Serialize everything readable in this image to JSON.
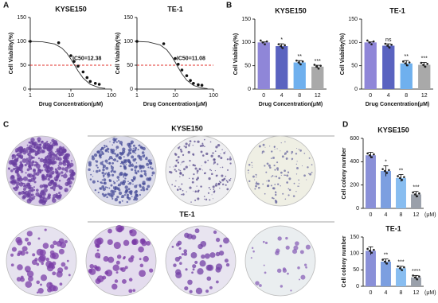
{
  "panels": [
    "A",
    "B",
    "C",
    "D"
  ],
  "plates": {
    "titles": [
      "KYSE150",
      "TE-1"
    ]
  },
  "chart_data": [
    {
      "type": "scatter",
      "title": "KYSE150",
      "xlabel": "Drug Concentration(μM)",
      "ylabel": "Cell Viability(%)",
      "x": [
        1,
        5,
        10,
        12,
        15,
        20,
        25,
        30,
        40,
        50
      ],
      "values": [
        100,
        97,
        70,
        58,
        48,
        36,
        24,
        16,
        12,
        10
      ],
      "fit_x": [
        1,
        2,
        4,
        6,
        8,
        10,
        12,
        15,
        20,
        30,
        50,
        70
      ],
      "fit_values": [
        99.8,
        99,
        94.4,
        85.9,
        74.9,
        63,
        51.9,
        38.2,
        23.1,
        9.9,
        3,
        1.3
      ],
      "color": "#111111",
      "xscale": "log",
      "xlim": [
        1,
        100
      ],
      "xticks": [
        1,
        10,
        100
      ],
      "ylim": [
        0,
        150
      ],
      "yticks": [
        0,
        50,
        100,
        150
      ],
      "reference_line": 50,
      "reference_color": "#e0312b",
      "annotation": "IC50=12.38"
    },
    {
      "type": "scatter",
      "title": "TE-1",
      "xlabel": "Drug Concentration(μM)",
      "ylabel": "Cell Viability(%)",
      "x": [
        1,
        5,
        10,
        12,
        15,
        20,
        25,
        30,
        40,
        50
      ],
      "values": [
        100,
        95,
        64,
        52,
        40,
        28,
        18,
        12,
        9,
        8
      ],
      "fit_x": [
        1,
        2,
        4,
        6,
        8,
        10,
        12,
        15,
        20,
        30,
        50,
        70
      ],
      "fit_values": [
        99.8,
        98.6,
        92.7,
        82.3,
        69.3,
        56.4,
        45,
        31.9,
        18.6,
        7.7,
        2.3,
        1
      ],
      "color": "#111111",
      "xscale": "log",
      "xlim": [
        1,
        100
      ],
      "xticks": [
        1,
        10,
        100
      ],
      "ylim": [
        0,
        150
      ],
      "yticks": [
        0,
        50,
        100,
        150
      ],
      "reference_line": 50,
      "reference_color": "#e0312b",
      "annotation": "IC50=11.08"
    },
    {
      "type": "bar",
      "title": "KYSE150",
      "xlabel": "Drug Concentration(μM)",
      "ylabel": "Cell Viability(%)",
      "categories": [
        "0",
        "4",
        "8",
        "12"
      ],
      "values": [
        100,
        92,
        57,
        48
      ],
      "errors": [
        1,
        5,
        4,
        3
      ],
      "significance": [
        null,
        "*",
        "**",
        "***"
      ],
      "colors": [
        "#8f86d8",
        "#5a63c0",
        "#6fb0ee",
        "#a9a9a9"
      ],
      "ylim": [
        0,
        150
      ],
      "yticks": [
        0,
        50,
        100,
        150
      ]
    },
    {
      "type": "bar",
      "title": "TE-1",
      "xlabel": "Drug Concentration(μM)",
      "ylabel": "Cell Viability(%)",
      "categories": [
        "0",
        "4",
        "8",
        "12"
      ],
      "values": [
        100,
        93,
        55,
        52
      ],
      "errors": [
        1,
        4,
        6,
        5
      ],
      "significance": [
        null,
        "ns",
        "**",
        "***"
      ],
      "colors": [
        "#8f86d8",
        "#5a63c0",
        "#6fb0ee",
        "#a9a9a9"
      ],
      "ylim": [
        0,
        150
      ],
      "yticks": [
        0,
        50,
        100,
        150
      ]
    },
    {
      "type": "bar",
      "title": "KYSE150",
      "ylabel": "Cell colony number",
      "x_unit": "(μM)",
      "categories": [
        "0",
        "4",
        "8",
        "12"
      ],
      "values": [
        455,
        320,
        260,
        120
      ],
      "errors": [
        25,
        45,
        30,
        25
      ],
      "significance": [
        null,
        "*",
        "**",
        "***"
      ],
      "colors": [
        "#8a90d8",
        "#7c9fe0",
        "#88bdf0",
        "#9aa0aa"
      ],
      "ylim": [
        0,
        600
      ],
      "yticks": [
        0,
        200,
        400,
        600
      ]
    },
    {
      "type": "bar",
      "title": "TE-1",
      "ylabel": "Cell colony number",
      "x_unit": "(μM)",
      "categories": [
        "0",
        "4",
        "8",
        "12"
      ],
      "values": [
        108,
        75,
        55,
        27
      ],
      "errors": [
        12,
        8,
        6,
        6
      ],
      "significance": [
        null,
        "**",
        "***",
        "****"
      ],
      "colors": [
        "#8a90d8",
        "#7c9fe0",
        "#88bdf0",
        "#9aa0aa"
      ],
      "ylim": [
        0,
        150
      ],
      "yticks": [
        0,
        50,
        100,
        150
      ]
    }
  ]
}
